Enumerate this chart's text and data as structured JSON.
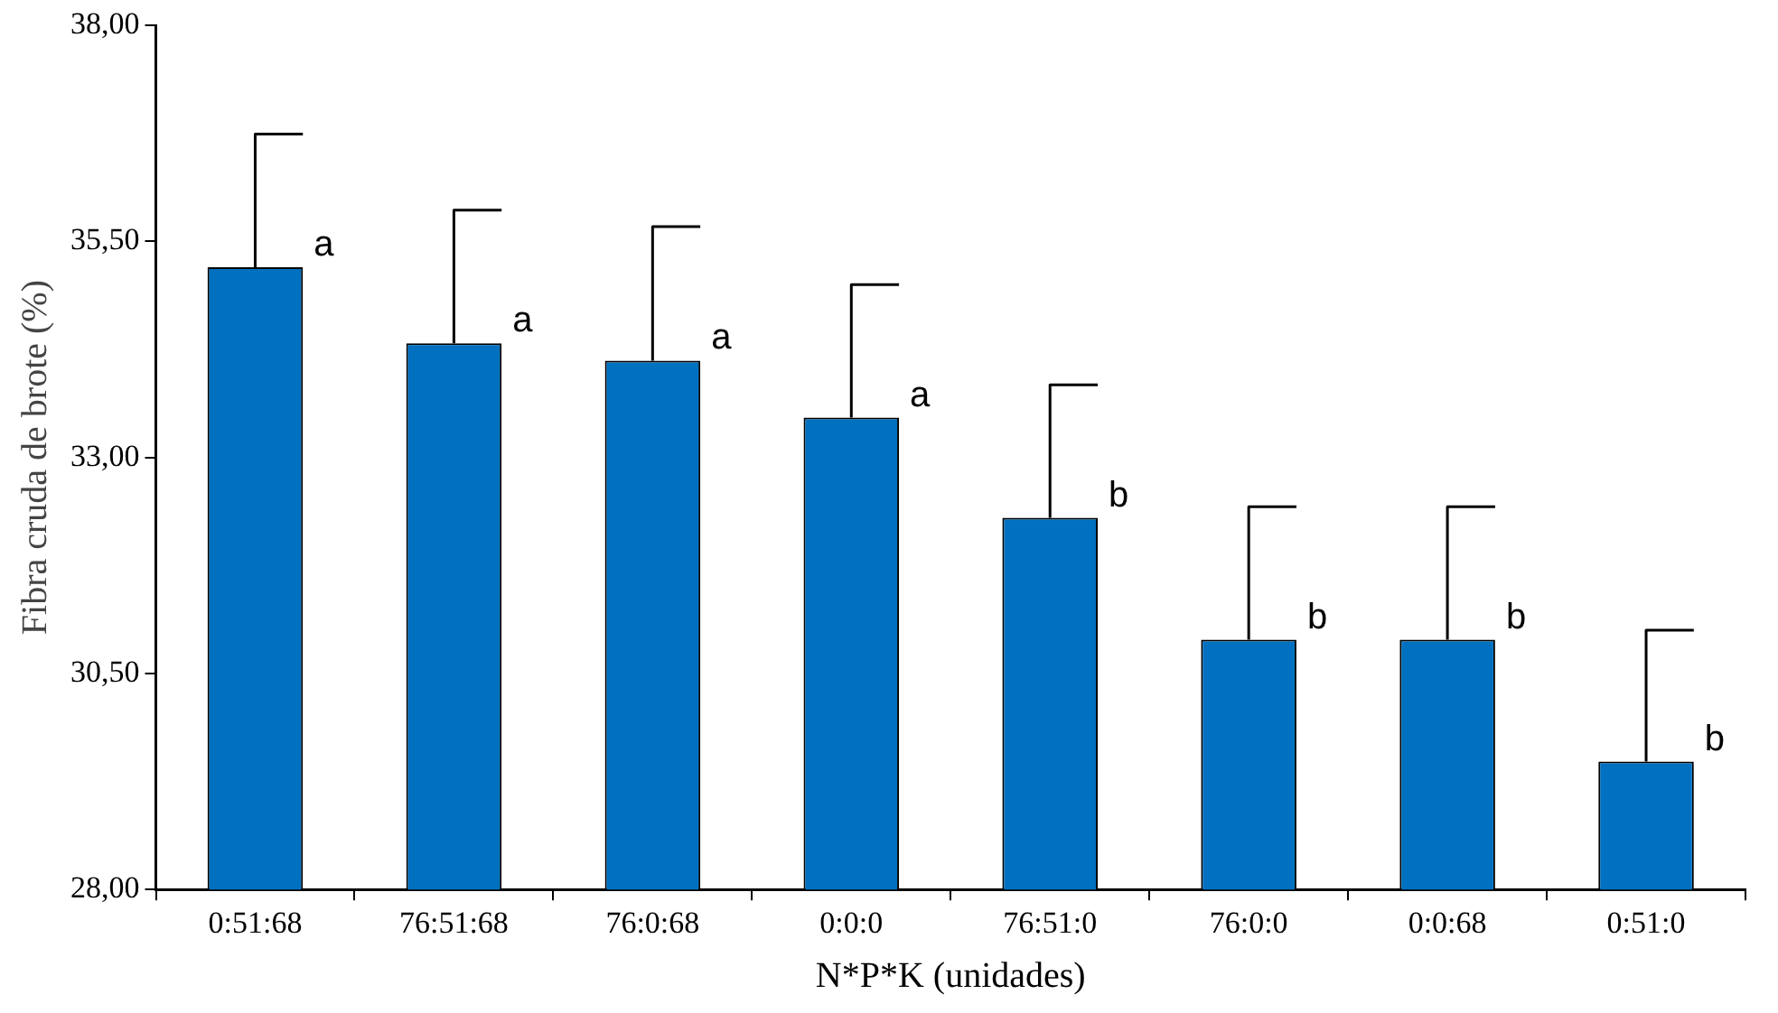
{
  "chart_data": {
    "type": "bar",
    "xlabel": "N*P*K (unidades)",
    "ylabel": "Fibra cruda de brote (%)",
    "categories": [
      "0:51:68",
      "76:51:68",
      "76:0:68",
      "0:0:0",
      "76:51:0",
      "76:0:0",
      "0:0:68",
      "0:51:0"
    ],
    "values": [
      35.2,
      34.32,
      34.12,
      33.46,
      32.3,
      30.89,
      30.89,
      29.48
    ],
    "errors": [
      [
        35.2,
        36.74
      ],
      [
        34.32,
        35.86
      ],
      [
        34.12,
        35.67
      ],
      [
        33.46,
        35.0
      ],
      [
        32.3,
        33.84
      ],
      [
        30.89,
        32.43
      ],
      [
        30.89,
        32.43
      ],
      [
        29.48,
        31.0
      ]
    ],
    "color": "#0070c0",
    "ylim": [
      28,
      38
    ],
    "yticks": [
      {
        "value": 28,
        "label": "28,00"
      },
      {
        "value": 30.5,
        "label": "30,50"
      },
      {
        "value": 33,
        "label": "33,00"
      },
      {
        "value": 35.5,
        "label": "35,50"
      },
      {
        "value": 38,
        "label": "38,00"
      }
    ],
    "annotations": [
      {
        "text": "a",
        "x": "0:51:68",
        "y": 35.2
      },
      {
        "text": "a",
        "x": "76:51:68",
        "y": 34.32
      },
      {
        "text": "a",
        "x": "76:0:68",
        "y": 34.12
      },
      {
        "text": "a",
        "x": "0:0:0",
        "y": 33.46
      },
      {
        "text": "b",
        "x": "76:51:0",
        "y": 32.3
      },
      {
        "text": "b",
        "x": "76:0:0",
        "y": 30.89
      },
      {
        "text": "b",
        "x": "0:0:68",
        "y": 30.89
      },
      {
        "text": "b",
        "x": "0:51:0",
        "y": 29.48
      }
    ],
    "legend": false
  }
}
